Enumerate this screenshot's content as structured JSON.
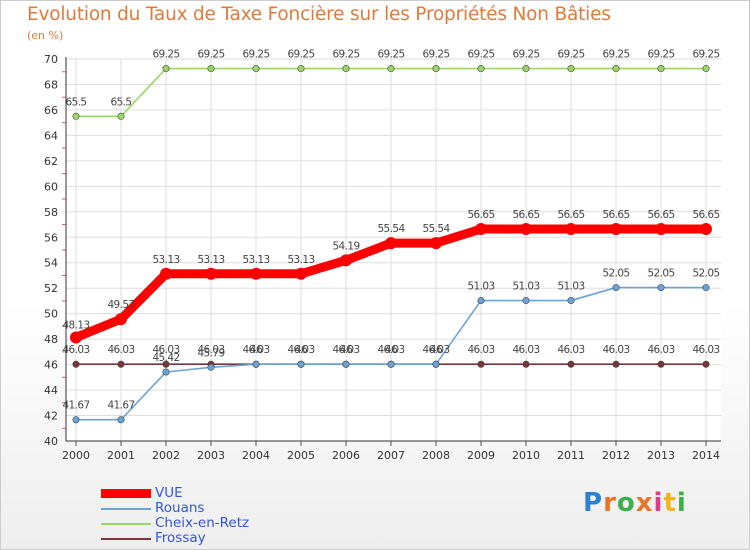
{
  "title": "Evolution du Taux de Taxe Foncière sur les Propriétés Non Bâties",
  "unit": "(en %)",
  "logo": {
    "letters": [
      "P",
      "r",
      "o",
      "x",
      "i",
      "t",
      "i"
    ],
    "colors": [
      "#2a7fd6",
      "#e8742a",
      "#3cae4a",
      "#e8742a",
      "#e23a8a",
      "#f2b51b",
      "#3cae4a"
    ]
  },
  "chart_data": {
    "type": "line",
    "title": "Evolution du Taux de Taxe Foncière sur les Propriétés Non Bâties",
    "ylabel": "(en %)",
    "x": [
      "2000",
      "2001",
      "2002",
      "2003",
      "2004",
      "2005",
      "2006",
      "2007",
      "2008",
      "2009",
      "2010",
      "2011",
      "2012",
      "2013",
      "2014"
    ],
    "ylim": [
      40,
      70
    ],
    "yticks": [
      "40",
      "42",
      "44",
      "46",
      "48",
      "50",
      "52",
      "54",
      "56",
      "58",
      "60",
      "62",
      "64",
      "66",
      "68",
      "70"
    ],
    "legend_position": "bottom-left",
    "series": [
      {
        "name": "VUE",
        "color": "#ff0000",
        "emphasis": true,
        "values": [
          48.13,
          49.57,
          53.13,
          53.13,
          53.13,
          53.13,
          54.19,
          55.54,
          55.54,
          56.65,
          56.65,
          56.65,
          56.65,
          56.65,
          56.65
        ],
        "labels": [
          "48.13",
          "49.57",
          "53.13",
          "53.13",
          "53.13",
          "53.13",
          "54.19",
          "55.54",
          "55.54",
          "56.65",
          "56.65",
          "56.65",
          "56.65",
          "56.65",
          "56.65"
        ]
      },
      {
        "name": "Rouans",
        "color": "#6aa3d8",
        "emphasis": false,
        "values": [
          41.67,
          41.67,
          45.42,
          45.79,
          46.03,
          46.03,
          46.03,
          46.03,
          46.03,
          51.03,
          51.03,
          51.03,
          52.05,
          52.05,
          52.05
        ],
        "labels": [
          "41.67",
          "41.67",
          "45.42",
          "45.79",
          "46",
          "46",
          "46",
          "46",
          "46",
          "51.03",
          "51.03",
          "51.03",
          "52.05",
          "52.05",
          "52.05"
        ]
      },
      {
        "name": "Cheix-en-Retz",
        "color": "#99d866",
        "emphasis": false,
        "values": [
          65.5,
          65.5,
          69.25,
          69.25,
          69.25,
          69.25,
          69.25,
          69.25,
          69.25,
          69.25,
          69.25,
          69.25,
          69.25,
          69.25,
          69.25
        ],
        "labels": [
          "65.5",
          "65.5",
          "69.25",
          "69.25",
          "69.25",
          "69.25",
          "69.25",
          "69.25",
          "69.25",
          "69.25",
          "69.25",
          "69.25",
          "69.25",
          "69.25",
          "69.25"
        ]
      },
      {
        "name": "Frossay",
        "color": "#7a3535",
        "emphasis": false,
        "values": [
          46.03,
          46.03,
          46.03,
          46.03,
          46.03,
          46.03,
          46.03,
          46.03,
          46.03,
          46.03,
          46.03,
          46.03,
          46.03,
          46.03,
          46.03
        ],
        "labels": [
          "46.03",
          "46.03",
          "46.03",
          "46.03",
          "46.03",
          "46.03",
          "46.03",
          "46.03",
          "46.03",
          "46.03",
          "46.03",
          "46.03",
          "46.03",
          "46.03",
          "46.03"
        ]
      }
    ]
  }
}
